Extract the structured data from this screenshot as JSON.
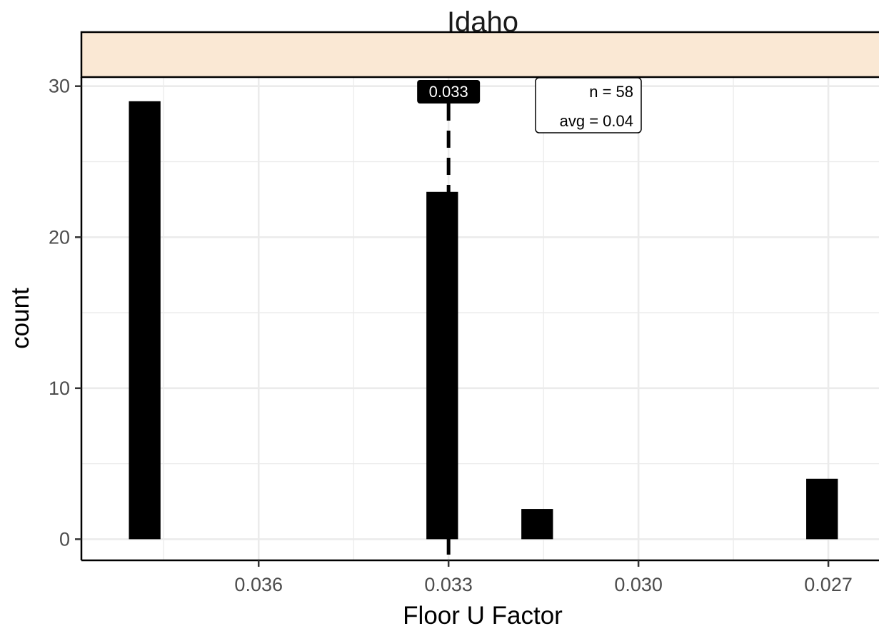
{
  "chart_data": {
    "type": "bar",
    "facet_title": "Idaho",
    "xlabel": "Floor U Factor",
    "ylabel": "count",
    "x_reversed": true,
    "x_ticks": [
      "0.036",
      "0.033",
      "0.030",
      "0.027"
    ],
    "x_tick_values": [
      0.036,
      0.033,
      0.03,
      0.027
    ],
    "xlim": [
      0.0388,
      0.0262
    ],
    "y_ticks": [
      0,
      10,
      20,
      30
    ],
    "ylim": [
      -1.4,
      30.6
    ],
    "grid": true,
    "bar_width": 0.0005,
    "bars": [
      {
        "x": 0.0378,
        "value": 29
      },
      {
        "x": 0.0331,
        "value": 23
      },
      {
        "x": 0.0316,
        "value": 2
      },
      {
        "x": 0.0271,
        "value": 4
      }
    ],
    "vline": {
      "x": 0.033,
      "label": "0.033"
    },
    "annotation": {
      "n_label": "n = 58",
      "avg_label": "avg = 0.04"
    },
    "colors": {
      "bar": "#000000",
      "strip_fill": "#fae8d4",
      "grid": "#ebebeb"
    }
  }
}
